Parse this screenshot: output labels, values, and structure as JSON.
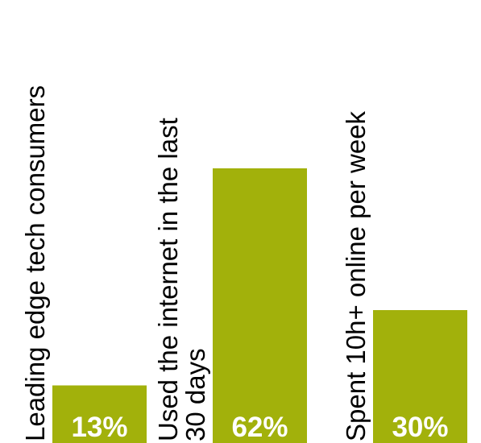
{
  "chart_data": {
    "type": "bar",
    "categories": [
      [
        "Leading edge tech consumers"
      ],
      [
        "Used the internet in the last",
        "30 days"
      ],
      [
        "Spent 10h+ online per week"
      ]
    ],
    "values": [
      13,
      62,
      30
    ],
    "value_labels": [
      "13%",
      "62%",
      "30%"
    ],
    "ylim": [
      0,
      100
    ],
    "bar_color": "#a2b10b",
    "grid": false
  }
}
